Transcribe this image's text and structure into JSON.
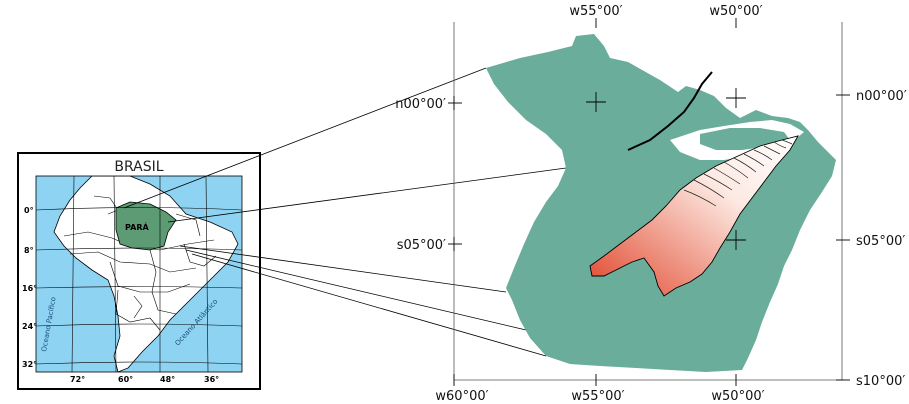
{
  "inset": {
    "title": "BRASIL",
    "state_label": "PARÁ",
    "lat_labels": [
      "0°",
      "8°",
      "16°",
      "24°",
      "32°"
    ],
    "lon_labels": [
      "72°",
      "60°",
      "48°",
      "36°"
    ],
    "ocean_pacific": "Oceano Pacífico",
    "ocean_atlantic": "Oceano Atlântico",
    "colors": {
      "ocean": "#8fd3f2",
      "state": "#5c9b73",
      "land": "#ffffff"
    }
  },
  "main_map": {
    "top_labels": [
      "w55°00′",
      "w50°00′"
    ],
    "bottom_labels": [
      "w60°00′",
      "w55°00′",
      "w50°00′"
    ],
    "left_labels": [
      "n00°00′",
      "s05°00′"
    ],
    "right_labels": [
      "n00°00′",
      "s05°00′",
      "s10°00′"
    ],
    "colors": {
      "state": "#6aad9a",
      "study_area_light": "#ffffff",
      "study_area_dark": "#e0452a"
    }
  }
}
